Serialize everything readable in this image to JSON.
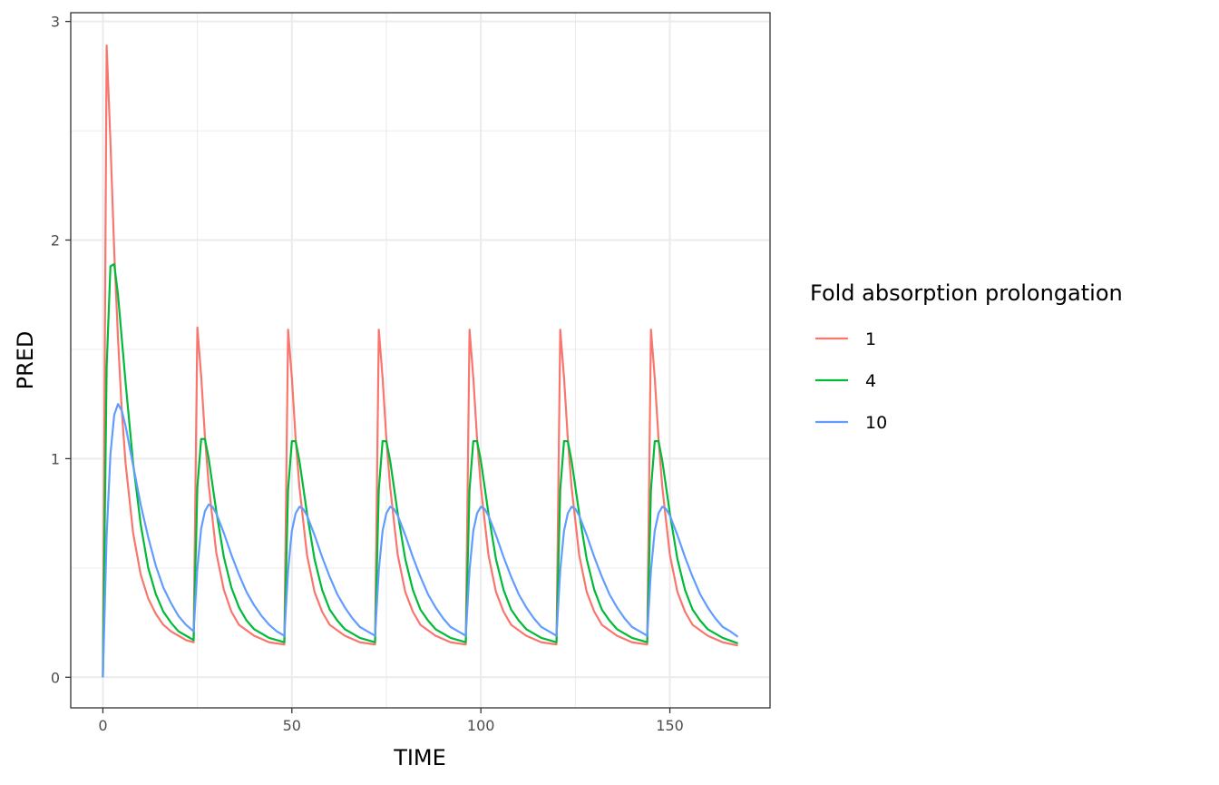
{
  "chart_data": {
    "type": "line",
    "xlabel": "TIME",
    "ylabel": "PRED",
    "xlim": [
      -8.5,
      176.5
    ],
    "ylim": [
      -0.14,
      3.04
    ],
    "x_ticks": [
      0,
      50,
      100,
      150
    ],
    "y_ticks": [
      0,
      1,
      2,
      3
    ],
    "x_minor": [
      25,
      75,
      125
    ],
    "y_minor": [
      0.5,
      1.5,
      2.5
    ],
    "grid": true,
    "legend": {
      "title": "Fold absorption prolongation",
      "placement": "right"
    },
    "dose_interval": 24,
    "series": [
      {
        "name": "1",
        "color": "#F8766D",
        "points": [
          [
            0,
            0
          ],
          [
            1,
            2.89
          ],
          [
            2,
            2.45
          ],
          [
            3,
            1.95
          ],
          [
            4,
            1.55
          ],
          [
            5,
            1.22
          ],
          [
            6,
            0.98
          ],
          [
            8,
            0.66
          ],
          [
            10,
            0.47
          ],
          [
            12,
            0.36
          ],
          [
            14,
            0.29
          ],
          [
            16,
            0.24
          ],
          [
            18,
            0.21
          ],
          [
            20,
            0.19
          ],
          [
            22,
            0.17
          ],
          [
            24,
            0.16
          ],
          [
            25,
            1.6
          ],
          [
            26,
            1.38
          ],
          [
            27,
            1.1
          ],
          [
            28,
            0.88
          ],
          [
            30,
            0.57
          ],
          [
            32,
            0.4
          ],
          [
            34,
            0.3
          ],
          [
            36,
            0.24
          ],
          [
            40,
            0.19
          ],
          [
            44,
            0.16
          ],
          [
            48,
            0.15
          ],
          [
            49,
            1.59
          ],
          [
            50,
            1.37
          ],
          [
            51,
            1.09
          ],
          [
            52,
            0.87
          ],
          [
            54,
            0.56
          ],
          [
            56,
            0.39
          ],
          [
            58,
            0.3
          ],
          [
            60,
            0.24
          ],
          [
            64,
            0.19
          ],
          [
            68,
            0.16
          ],
          [
            72,
            0.15
          ],
          [
            73,
            1.59
          ],
          [
            74,
            1.37
          ],
          [
            75,
            1.09
          ],
          [
            76,
            0.87
          ],
          [
            78,
            0.56
          ],
          [
            80,
            0.39
          ],
          [
            82,
            0.3
          ],
          [
            84,
            0.24
          ],
          [
            88,
            0.19
          ],
          [
            92,
            0.16
          ],
          [
            96,
            0.15
          ],
          [
            97,
            1.59
          ],
          [
            98,
            1.37
          ],
          [
            99,
            1.09
          ],
          [
            100,
            0.87
          ],
          [
            102,
            0.56
          ],
          [
            104,
            0.39
          ],
          [
            106,
            0.3
          ],
          [
            108,
            0.24
          ],
          [
            112,
            0.19
          ],
          [
            116,
            0.16
          ],
          [
            120,
            0.15
          ],
          [
            121,
            1.59
          ],
          [
            122,
            1.37
          ],
          [
            123,
            1.09
          ],
          [
            124,
            0.87
          ],
          [
            126,
            0.56
          ],
          [
            128,
            0.39
          ],
          [
            130,
            0.3
          ],
          [
            132,
            0.24
          ],
          [
            136,
            0.19
          ],
          [
            140,
            0.16
          ],
          [
            144,
            0.15
          ],
          [
            145,
            1.59
          ],
          [
            146,
            1.37
          ],
          [
            147,
            1.09
          ],
          [
            148,
            0.87
          ],
          [
            150,
            0.56
          ],
          [
            152,
            0.39
          ],
          [
            154,
            0.3
          ],
          [
            156,
            0.24
          ],
          [
            160,
            0.19
          ],
          [
            164,
            0.16
          ],
          [
            168,
            0.145
          ]
        ]
      },
      {
        "name": "4",
        "color": "#00BA38",
        "points": [
          [
            0,
            0
          ],
          [
            1,
            1.42
          ],
          [
            2,
            1.88
          ],
          [
            3,
            1.89
          ],
          [
            4,
            1.75
          ],
          [
            5,
            1.55
          ],
          [
            6,
            1.35
          ],
          [
            8,
            0.98
          ],
          [
            10,
            0.7
          ],
          [
            12,
            0.5
          ],
          [
            14,
            0.38
          ],
          [
            16,
            0.3
          ],
          [
            18,
            0.25
          ],
          [
            20,
            0.21
          ],
          [
            22,
            0.19
          ],
          [
            24,
            0.17
          ],
          [
            25,
            0.87
          ],
          [
            26,
            1.09
          ],
          [
            27,
            1.09
          ],
          [
            28,
            1.0
          ],
          [
            29,
            0.88
          ],
          [
            30,
            0.76
          ],
          [
            32,
            0.55
          ],
          [
            34,
            0.41
          ],
          [
            36,
            0.32
          ],
          [
            38,
            0.26
          ],
          [
            40,
            0.22
          ],
          [
            44,
            0.18
          ],
          [
            48,
            0.16
          ],
          [
            49,
            0.86
          ],
          [
            50,
            1.08
          ],
          [
            51,
            1.08
          ],
          [
            52,
            0.99
          ],
          [
            53,
            0.87
          ],
          [
            54,
            0.75
          ],
          [
            56,
            0.54
          ],
          [
            58,
            0.4
          ],
          [
            60,
            0.31
          ],
          [
            62,
            0.26
          ],
          [
            64,
            0.22
          ],
          [
            68,
            0.18
          ],
          [
            72,
            0.16
          ],
          [
            73,
            0.86
          ],
          [
            74,
            1.08
          ],
          [
            75,
            1.08
          ],
          [
            76,
            0.99
          ],
          [
            77,
            0.87
          ],
          [
            78,
            0.75
          ],
          [
            80,
            0.54
          ],
          [
            82,
            0.4
          ],
          [
            84,
            0.31
          ],
          [
            86,
            0.26
          ],
          [
            88,
            0.22
          ],
          [
            92,
            0.18
          ],
          [
            96,
            0.16
          ],
          [
            97,
            0.86
          ],
          [
            98,
            1.08
          ],
          [
            99,
            1.08
          ],
          [
            100,
            0.99
          ],
          [
            101,
            0.87
          ],
          [
            102,
            0.75
          ],
          [
            104,
            0.54
          ],
          [
            106,
            0.4
          ],
          [
            108,
            0.31
          ],
          [
            110,
            0.26
          ],
          [
            112,
            0.22
          ],
          [
            116,
            0.18
          ],
          [
            120,
            0.16
          ],
          [
            121,
            0.86
          ],
          [
            122,
            1.08
          ],
          [
            123,
            1.08
          ],
          [
            124,
            0.99
          ],
          [
            125,
            0.87
          ],
          [
            126,
            0.75
          ],
          [
            128,
            0.54
          ],
          [
            130,
            0.4
          ],
          [
            132,
            0.31
          ],
          [
            134,
            0.26
          ],
          [
            136,
            0.22
          ],
          [
            140,
            0.18
          ],
          [
            144,
            0.16
          ],
          [
            145,
            0.86
          ],
          [
            146,
            1.08
          ],
          [
            147,
            1.08
          ],
          [
            148,
            0.99
          ],
          [
            149,
            0.87
          ],
          [
            150,
            0.75
          ],
          [
            152,
            0.54
          ],
          [
            154,
            0.4
          ],
          [
            156,
            0.31
          ],
          [
            158,
            0.26
          ],
          [
            160,
            0.22
          ],
          [
            164,
            0.18
          ],
          [
            168,
            0.155
          ]
        ]
      },
      {
        "name": "10",
        "color": "#619CFF",
        "points": [
          [
            0,
            0
          ],
          [
            1,
            0.65
          ],
          [
            2,
            1.02
          ],
          [
            3,
            1.2
          ],
          [
            4,
            1.25
          ],
          [
            5,
            1.22
          ],
          [
            6,
            1.15
          ],
          [
            8,
            0.97
          ],
          [
            10,
            0.79
          ],
          [
            12,
            0.64
          ],
          [
            14,
            0.51
          ],
          [
            16,
            0.41
          ],
          [
            18,
            0.34
          ],
          [
            20,
            0.28
          ],
          [
            22,
            0.24
          ],
          [
            24,
            0.21
          ],
          [
            25,
            0.5
          ],
          [
            26,
            0.68
          ],
          [
            27,
            0.76
          ],
          [
            28,
            0.79
          ],
          [
            29,
            0.78
          ],
          [
            30,
            0.75
          ],
          [
            32,
            0.66
          ],
          [
            34,
            0.56
          ],
          [
            36,
            0.47
          ],
          [
            38,
            0.39
          ],
          [
            40,
            0.33
          ],
          [
            42,
            0.28
          ],
          [
            44,
            0.24
          ],
          [
            46,
            0.21
          ],
          [
            48,
            0.19
          ],
          [
            49,
            0.49
          ],
          [
            50,
            0.67
          ],
          [
            51,
            0.75
          ],
          [
            52,
            0.78
          ],
          [
            53,
            0.77
          ],
          [
            54,
            0.74
          ],
          [
            56,
            0.65
          ],
          [
            58,
            0.55
          ],
          [
            60,
            0.46
          ],
          [
            62,
            0.38
          ],
          [
            64,
            0.32
          ],
          [
            66,
            0.27
          ],
          [
            68,
            0.23
          ],
          [
            70,
            0.21
          ],
          [
            72,
            0.19
          ],
          [
            73,
            0.49
          ],
          [
            74,
            0.67
          ],
          [
            75,
            0.75
          ],
          [
            76,
            0.78
          ],
          [
            77,
            0.77
          ],
          [
            78,
            0.74
          ],
          [
            80,
            0.65
          ],
          [
            82,
            0.55
          ],
          [
            84,
            0.46
          ],
          [
            86,
            0.38
          ],
          [
            88,
            0.32
          ],
          [
            90,
            0.27
          ],
          [
            92,
            0.23
          ],
          [
            94,
            0.21
          ],
          [
            96,
            0.19
          ],
          [
            97,
            0.49
          ],
          [
            98,
            0.67
          ],
          [
            99,
            0.75
          ],
          [
            100,
            0.78
          ],
          [
            101,
            0.77
          ],
          [
            102,
            0.74
          ],
          [
            104,
            0.65
          ],
          [
            106,
            0.55
          ],
          [
            108,
            0.46
          ],
          [
            110,
            0.38
          ],
          [
            112,
            0.32
          ],
          [
            114,
            0.27
          ],
          [
            116,
            0.23
          ],
          [
            118,
            0.21
          ],
          [
            120,
            0.19
          ],
          [
            121,
            0.49
          ],
          [
            122,
            0.67
          ],
          [
            123,
            0.75
          ],
          [
            124,
            0.78
          ],
          [
            125,
            0.77
          ],
          [
            126,
            0.74
          ],
          [
            128,
            0.65
          ],
          [
            130,
            0.55
          ],
          [
            132,
            0.46
          ],
          [
            134,
            0.38
          ],
          [
            136,
            0.32
          ],
          [
            138,
            0.27
          ],
          [
            140,
            0.23
          ],
          [
            142,
            0.21
          ],
          [
            144,
            0.19
          ],
          [
            145,
            0.49
          ],
          [
            146,
            0.67
          ],
          [
            147,
            0.75
          ],
          [
            148,
            0.78
          ],
          [
            149,
            0.77
          ],
          [
            150,
            0.74
          ],
          [
            152,
            0.65
          ],
          [
            154,
            0.55
          ],
          [
            156,
            0.46
          ],
          [
            158,
            0.38
          ],
          [
            160,
            0.32
          ],
          [
            162,
            0.27
          ],
          [
            164,
            0.23
          ],
          [
            166,
            0.21
          ],
          [
            168,
            0.185
          ]
        ]
      }
    ]
  }
}
